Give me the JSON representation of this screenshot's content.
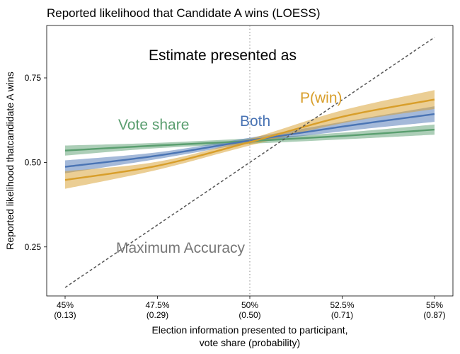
{
  "chart_data": {
    "type": "line",
    "title": "Reported likelihood that Candidate A wins (LOESS)",
    "xlabel_line1": "Election information presented to participant,",
    "xlabel_line2": "vote share (probability)",
    "ylabel": "Reported likelihood thatcandidate A wins",
    "xlim": [
      0.45,
      0.55
    ],
    "ylim": [
      0.105,
      0.905
    ],
    "x_ticks": [
      {
        "value": 0.45,
        "label": "45%",
        "sublabel": "(0.13)"
      },
      {
        "value": 0.475,
        "label": "47.5%",
        "sublabel": "(0.29)"
      },
      {
        "value": 0.5,
        "label": "50%",
        "sublabel": "(0.50)"
      },
      {
        "value": 0.525,
        "label": "52.5%",
        "sublabel": "(0.71)"
      },
      {
        "value": 0.55,
        "label": "55%",
        "sublabel": "(0.87)"
      }
    ],
    "y_ticks": [
      {
        "value": 0.25,
        "label": "0.25"
      },
      {
        "value": 0.5,
        "label": "0.50"
      },
      {
        "value": 0.75,
        "label": "0.75"
      }
    ],
    "reference_vline": {
      "x": 0.5
    },
    "series": [
      {
        "name": "Vote share",
        "color": "#5a9e6f",
        "x": [
          0.45,
          0.475,
          0.5,
          0.525,
          0.55
        ],
        "y": [
          0.535,
          0.55,
          0.563,
          0.578,
          0.597
        ],
        "lower": [
          0.52,
          0.542,
          0.555,
          0.568,
          0.582
        ],
        "upper": [
          0.55,
          0.558,
          0.571,
          0.588,
          0.612
        ]
      },
      {
        "name": "Both",
        "color": "#4a74b4",
        "x": [
          0.45,
          0.475,
          0.5,
          0.525,
          0.55
        ],
        "y": [
          0.487,
          0.52,
          0.565,
          0.606,
          0.643
        ],
        "lower": [
          0.468,
          0.51,
          0.557,
          0.592,
          0.62
        ],
        "upper": [
          0.506,
          0.53,
          0.573,
          0.62,
          0.666
        ]
      },
      {
        "name": "P(win)",
        "color": "#d89e2a",
        "x": [
          0.45,
          0.475,
          0.5,
          0.525,
          0.55
        ],
        "y": [
          0.448,
          0.49,
          0.56,
          0.635,
          0.686
        ],
        "lower": [
          0.422,
          0.478,
          0.55,
          0.616,
          0.658
        ],
        "upper": [
          0.474,
          0.502,
          0.57,
          0.654,
          0.714
        ]
      },
      {
        "name": "Maximum Accuracy",
        "color": "#555555",
        "x": [
          0.45,
          0.55
        ],
        "y": [
          0.13,
          0.87
        ]
      }
    ],
    "annotations": {
      "header": "Estimate presented as",
      "vote_share": "Vote share",
      "both": "Both",
      "pwin": "P(win)",
      "max_acc": "Maximum Accuracy"
    },
    "annotation_colors": {
      "header": "#000000",
      "vote_share": "#5a9e6f",
      "both": "#4a74b4",
      "pwin": "#d89e2a",
      "max_acc": "#777777"
    }
  }
}
